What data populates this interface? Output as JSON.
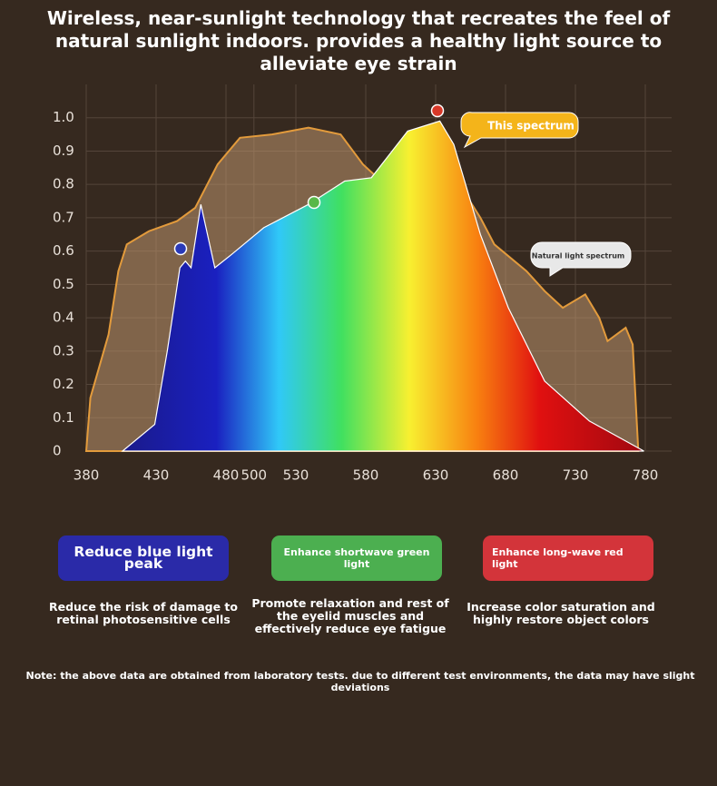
{
  "chart_data": {
    "type": "area",
    "title": "Wireless, near-sunlight technology that recreates the feel of natural sunlight indoors. provides a healthy light source to alleviate eye strain",
    "xlim": [
      380,
      780
    ],
    "xticks": [
      380,
      430,
      480,
      500,
      530,
      580,
      630,
      680,
      730,
      780
    ],
    "ylim": [
      0,
      1.1
    ],
    "yticks": [
      0,
      0.1,
      0.2,
      0.3,
      0.4,
      0.5,
      0.6,
      0.7,
      0.8,
      0.9,
      {
        "value": 1,
        "label": "1.0"
      }
    ],
    "grid": true,
    "series": [
      {
        "name": "Natural light spectrum",
        "color": "#e39b3c",
        "x": [
          380,
          383,
          396,
          403,
          409,
          425,
          445,
          458,
          474,
          490,
          513,
          539,
          562,
          578,
          591,
          610,
          630,
          650,
          662,
          672,
          695,
          708,
          721,
          737,
          747,
          753,
          766,
          771,
          775
        ],
        "values": [
          0,
          0.16,
          0.35,
          0.54,
          0.62,
          0.66,
          0.69,
          0.73,
          0.86,
          0.94,
          0.95,
          0.97,
          0.95,
          0.86,
          0.81,
          0.9,
          0.97,
          0.78,
          0.7,
          0.62,
          0.54,
          0.48,
          0.43,
          0.47,
          0.4,
          0.33,
          0.37,
          0.32,
          0
        ]
      },
      {
        "name": "This spectrum",
        "x": [
          406,
          429,
          438,
          447,
          451,
          455,
          462,
          472,
          484,
          507,
          539,
          565,
          584,
          610,
          633,
          643,
          662,
          682,
          708,
          740,
          779
        ],
        "values": [
          0,
          0.08,
          0.3,
          0.55,
          0.57,
          0.55,
          0.74,
          0.55,
          0.59,
          0.67,
          0.74,
          0.81,
          0.82,
          0.96,
          0.99,
          0.92,
          0.65,
          0.43,
          0.21,
          0.09,
          0
        ]
      }
    ]
  },
  "features": [
    {
      "title": "Reduce blue light peak",
      "text": "Reduce the risk of damage to retinal photosensitive cells"
    },
    {
      "title": "Enhance shortwave green light",
      "text": "Promote relaxation and rest of the eyelid muscles and effectively reduce eye fatigue"
    },
    {
      "title": "Enhance long-wave red light",
      "text": "Increase color saturation and highly restore object colors"
    }
  ],
  "note": "Note: the above data are obtained from laboratory tests. due to different test environments, the data may have slight deviations"
}
